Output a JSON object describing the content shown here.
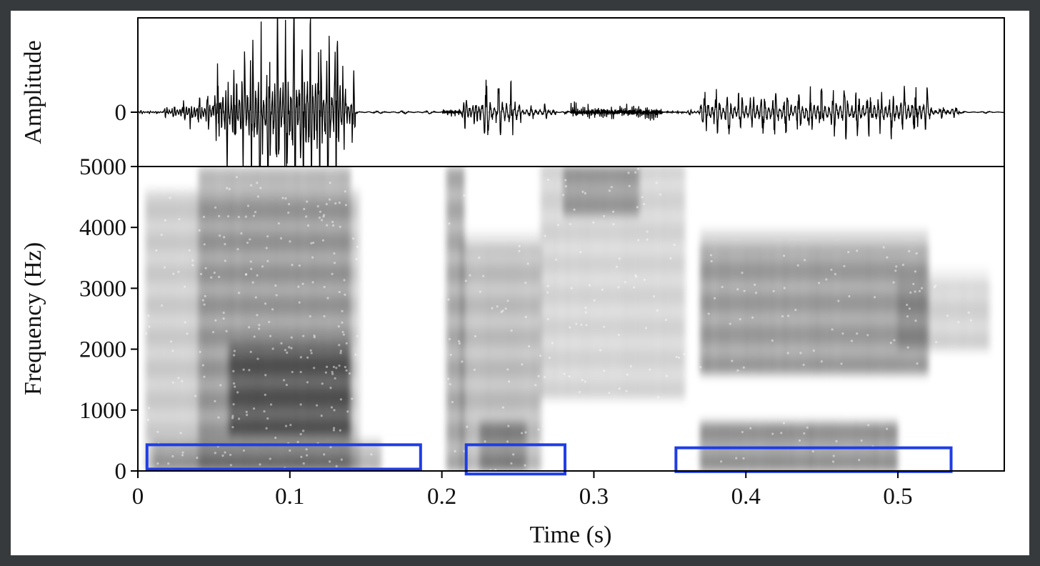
{
  "chart_data": [
    {
      "type": "line",
      "panel": "waveform",
      "ylabel": "Amplitude",
      "yticks": [
        {
          "value": 0,
          "label": "0"
        }
      ],
      "xlim": [
        0,
        0.57
      ],
      "ylim": [
        -1,
        1
      ],
      "bursts": [
        {
          "start": 0.0,
          "end": 0.017,
          "amp": 0.02,
          "hz": 200
        },
        {
          "start": 0.017,
          "end": 0.03,
          "amp": 0.08,
          "hz": 190
        },
        {
          "start": 0.03,
          "end": 0.05,
          "amp": 0.2,
          "hz": 185
        },
        {
          "start": 0.05,
          "end": 0.07,
          "amp": 0.62,
          "hz": 180
        },
        {
          "start": 0.07,
          "end": 0.08,
          "amp": 0.8,
          "hz": 180
        },
        {
          "start": 0.08,
          "end": 0.135,
          "amp": 1.05,
          "hz": 180
        },
        {
          "start": 0.135,
          "end": 0.143,
          "amp": 0.4,
          "hz": 180
        },
        {
          "start": 0.143,
          "end": 0.2,
          "amp": 0.015,
          "hz": 60
        },
        {
          "start": 0.2,
          "end": 0.213,
          "amp": 0.04,
          "hz": 400
        },
        {
          "start": 0.213,
          "end": 0.225,
          "amp": 0.2,
          "hz": 160
        },
        {
          "start": 0.225,
          "end": 0.252,
          "amp": 0.3,
          "hz": 120
        },
        {
          "start": 0.252,
          "end": 0.275,
          "amp": 0.08,
          "hz": 110
        },
        {
          "start": 0.275,
          "end": 0.285,
          "amp": 0.015,
          "hz": 80
        },
        {
          "start": 0.285,
          "end": 0.345,
          "amp": 0.09,
          "hz": 900
        },
        {
          "start": 0.345,
          "end": 0.36,
          "amp": 0.015,
          "hz": 300
        },
        {
          "start": 0.36,
          "end": 0.37,
          "amp": 0.03,
          "hz": 150
        },
        {
          "start": 0.37,
          "end": 0.52,
          "amp": 0.24,
          "hz": 130
        },
        {
          "start": 0.52,
          "end": 0.54,
          "amp": 0.07,
          "hz": 120
        },
        {
          "start": 0.54,
          "end": 0.57,
          "amp": 0.01,
          "hz": 60
        }
      ]
    },
    {
      "type": "heatmap",
      "panel": "spectrogram",
      "xlabel": "Time (s)",
      "ylabel": "Frequency (Hz)",
      "xlim": [
        0,
        0.57
      ],
      "ylim": [
        0,
        5000
      ],
      "xticks": [
        {
          "value": 0,
          "label": "0"
        },
        {
          "value": 0.1,
          "label": "0.1"
        },
        {
          "value": 0.2,
          "label": "0.2"
        },
        {
          "value": 0.3,
          "label": "0.3"
        },
        {
          "value": 0.4,
          "label": "0.4"
        },
        {
          "value": 0.5,
          "label": "0.5"
        }
      ],
      "yticks": [
        {
          "value": 0,
          "label": "0"
        },
        {
          "value": 1000,
          "label": "1000"
        },
        {
          "value": 2000,
          "label": "2000"
        },
        {
          "value": 3000,
          "label": "3000"
        },
        {
          "value": 4000,
          "label": "4000"
        },
        {
          "value": 5000,
          "label": "5000"
        }
      ],
      "energy_regions": [
        {
          "t0": 0.005,
          "t1": 0.145,
          "f0": 0,
          "f1": 4600,
          "intensity": 0.35
        },
        {
          "t0": 0.04,
          "t1": 0.14,
          "f0": 0,
          "f1": 5000,
          "intensity": 0.45
        },
        {
          "t0": 0.06,
          "t1": 0.14,
          "f0": 600,
          "f1": 2100,
          "intensity": 0.85
        },
        {
          "t0": 0.01,
          "t1": 0.16,
          "f0": 0,
          "f1": 500,
          "intensity": 0.45
        },
        {
          "t0": 0.203,
          "t1": 0.215,
          "f0": 0,
          "f1": 5000,
          "intensity": 0.6
        },
        {
          "t0": 0.213,
          "t1": 0.265,
          "f0": 0,
          "f1": 3700,
          "intensity": 0.45
        },
        {
          "t0": 0.225,
          "t1": 0.255,
          "f0": 0,
          "f1": 800,
          "intensity": 0.55
        },
        {
          "t0": 0.265,
          "t1": 0.36,
          "f0": 1200,
          "f1": 5000,
          "intensity": 0.28
        },
        {
          "t0": 0.28,
          "t1": 0.33,
          "f0": 4200,
          "f1": 5000,
          "intensity": 0.5
        },
        {
          "t0": 0.37,
          "t1": 0.52,
          "f0": 1600,
          "f1": 3700,
          "intensity": 0.7
        },
        {
          "t0": 0.37,
          "t1": 0.5,
          "f0": 0,
          "f1": 800,
          "intensity": 0.75
        },
        {
          "t0": 0.5,
          "t1": 0.56,
          "f0": 2000,
          "f1": 3100,
          "intensity": 0.3
        }
      ],
      "highlight_color": "#1f3de6",
      "highlight_boxes": [
        {
          "t0": 0.006,
          "t1": 0.186,
          "f0": 30,
          "f1": 430
        },
        {
          "t0": 0.216,
          "t1": 0.281,
          "f0": -50,
          "f1": 430
        },
        {
          "t0": 0.354,
          "t1": 0.535,
          "f0": -10,
          "f1": 380
        }
      ]
    }
  ]
}
